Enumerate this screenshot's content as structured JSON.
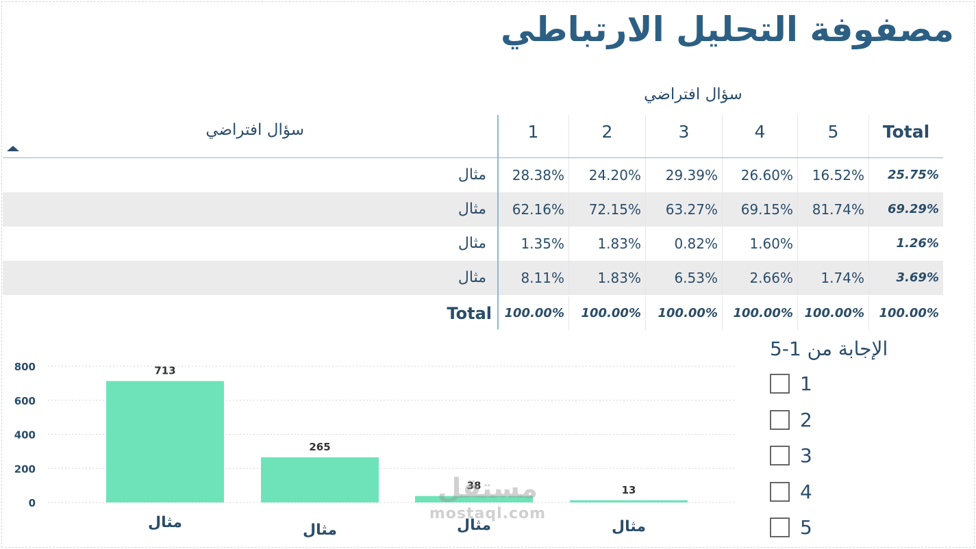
{
  "title": "مصفوفة التحليل الارتباطي",
  "matrix": {
    "column_group_header": "سؤال افتراضي",
    "row_header": "سؤال افتراضي",
    "columns": [
      "1",
      "2",
      "3",
      "4",
      "5",
      "Total"
    ],
    "rows": [
      {
        "label": "مثال",
        "values": [
          "28.38%",
          "24.20%",
          "29.39%",
          "26.60%",
          "16.52%",
          "25.75%"
        ]
      },
      {
        "label": "مثال",
        "values": [
          "62.16%",
          "72.15%",
          "63.27%",
          "69.15%",
          "81.74%",
          "69.29%"
        ]
      },
      {
        "label": "مثال",
        "values": [
          "1.35%",
          "1.83%",
          "0.82%",
          "1.60%",
          "",
          "1.26%"
        ]
      },
      {
        "label": "مثال",
        "values": [
          "8.11%",
          "1.83%",
          "6.53%",
          "2.66%",
          "1.74%",
          "3.69%"
        ]
      }
    ],
    "total_row": {
      "label": "Total",
      "values": [
        "100.00%",
        "100.00%",
        "100.00%",
        "100.00%",
        "100.00%",
        "100.00%"
      ]
    }
  },
  "chart_data": {
    "type": "bar",
    "categories": [
      "مثال",
      "مثال",
      "مثال",
      "مثال"
    ],
    "values": [
      713,
      265,
      38,
      13
    ],
    "yticks": [
      0,
      200,
      400,
      600,
      800
    ],
    "ylim": [
      0,
      800
    ],
    "grid": true,
    "bar_color": "#6ee3b9",
    "title": "",
    "xlabel": "",
    "ylabel": ""
  },
  "slicer": {
    "title": "الإجابة من 1-5",
    "options": [
      "1",
      "2",
      "3",
      "4",
      "5"
    ]
  },
  "watermark": {
    "logo": "مستقل",
    "url": "mostaql.com"
  }
}
